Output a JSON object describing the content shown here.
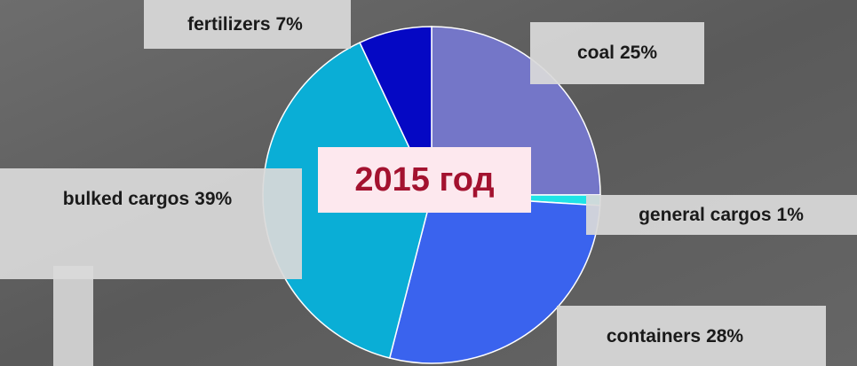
{
  "chart_data": {
    "type": "pie",
    "title": "2015 год",
    "categories": [
      "coal",
      "general cargos",
      "containers",
      "bulked cargos",
      "fertilizers"
    ],
    "values": [
      25,
      1,
      28,
      39,
      7
    ],
    "value_labels": [
      "25%",
      "1%",
      "28%",
      "39%",
      "7%"
    ],
    "colors": [
      "#7476c8",
      "#1fe3e6",
      "#3a63ee",
      "#0aaed6",
      "#0508c4"
    ]
  }
}
